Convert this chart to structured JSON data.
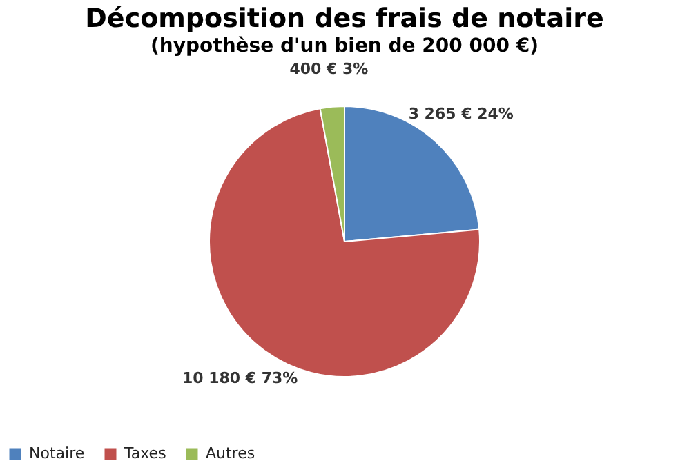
{
  "chart_data": {
    "type": "pie",
    "title": "Décomposition des frais de notaire",
    "subtitle": "(hypothèse d'un bien de 200 000 €)",
    "categories": [
      "Notaire",
      "Taxes",
      "Autres"
    ],
    "values": [
      3265,
      10180,
      400
    ],
    "colors": [
      "#4f81bd",
      "#c0504d",
      "#9bbb59"
    ],
    "value_labels": [
      "3 265 €  24%",
      "10 180 €  73%",
      "400 €  3%"
    ],
    "legend": "bottom"
  }
}
